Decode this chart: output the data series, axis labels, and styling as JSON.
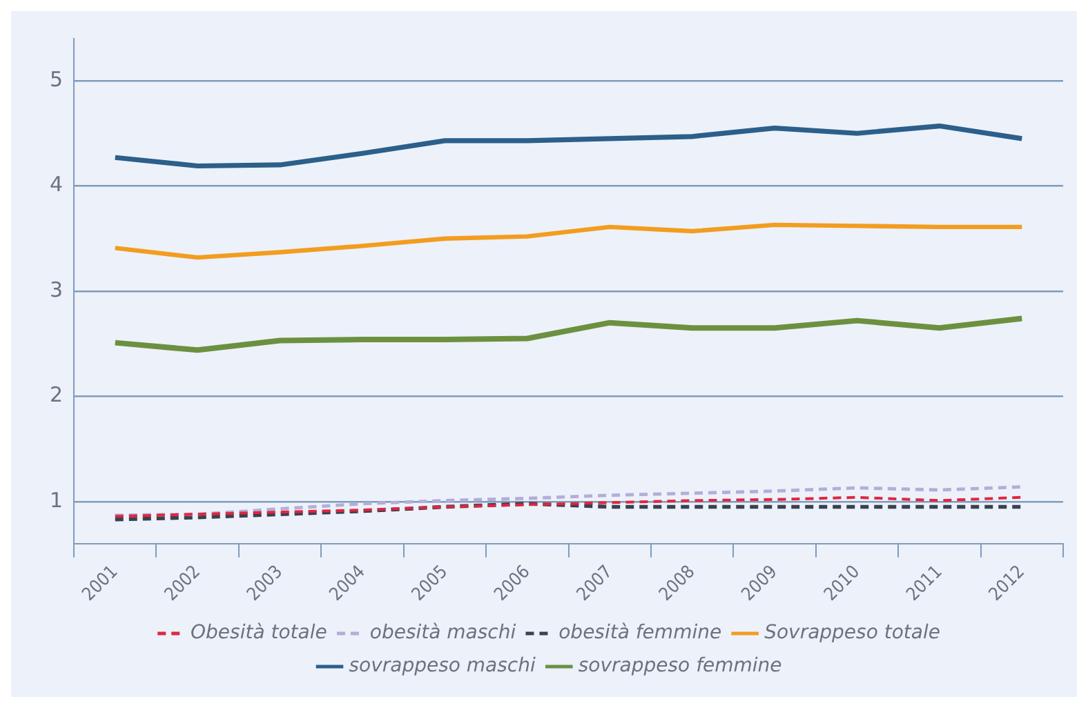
{
  "chart_data": {
    "type": "line",
    "categories": [
      "2001",
      "2002",
      "2003",
      "2004",
      "2005",
      "2006",
      "2007",
      "2008",
      "2009",
      "2010",
      "2011",
      "2012"
    ],
    "series": [
      {
        "name": "Obesità totale",
        "color": "#e0263f",
        "line_style": "dashed",
        "values": [
          0.86,
          0.88,
          0.9,
          0.92,
          0.95,
          0.97,
          0.99,
          1.01,
          1.02,
          1.04,
          1.01,
          1.04
        ]
      },
      {
        "name": "obesità maschi",
        "color": "#b3aed8",
        "line_style": "dashed",
        "values": [
          0.87,
          0.88,
          0.93,
          0.98,
          1.01,
          1.03,
          1.06,
          1.08,
          1.1,
          1.13,
          1.11,
          1.14
        ]
      },
      {
        "name": "obesità femmine",
        "color": "#3a4150",
        "line_style": "dashed",
        "values": [
          0.83,
          0.85,
          0.88,
          0.91,
          0.95,
          0.98,
          0.95,
          0.95,
          0.95,
          0.95,
          0.95,
          0.95
        ]
      },
      {
        "name": "Sovrappeso totale",
        "color": "#f29d1f",
        "line_style": "solid",
        "values": [
          3.41,
          3.32,
          3.37,
          3.43,
          3.5,
          3.52,
          3.61,
          3.57,
          3.63,
          3.62,
          3.61,
          3.61
        ]
      },
      {
        "name": "sovrappeso maschi",
        "color": "#2c5f8a",
        "line_style": "solid",
        "values": [
          4.27,
          4.19,
          4.2,
          4.31,
          4.43,
          4.43,
          4.45,
          4.47,
          4.55,
          4.5,
          4.57,
          4.45
        ]
      },
      {
        "name": "sovrappeso femmine",
        "color": "#6b9140",
        "line_style": "solid",
        "values": [
          2.51,
          2.44,
          2.53,
          2.54,
          2.54,
          2.55,
          2.7,
          2.65,
          2.65,
          2.72,
          2.65,
          2.74
        ]
      }
    ],
    "ylim": [
      0.6,
      5.4
    ],
    "yticks": [
      1,
      2,
      3,
      4,
      5
    ],
    "grid": "y",
    "legend": "bottom",
    "marker": "none"
  }
}
